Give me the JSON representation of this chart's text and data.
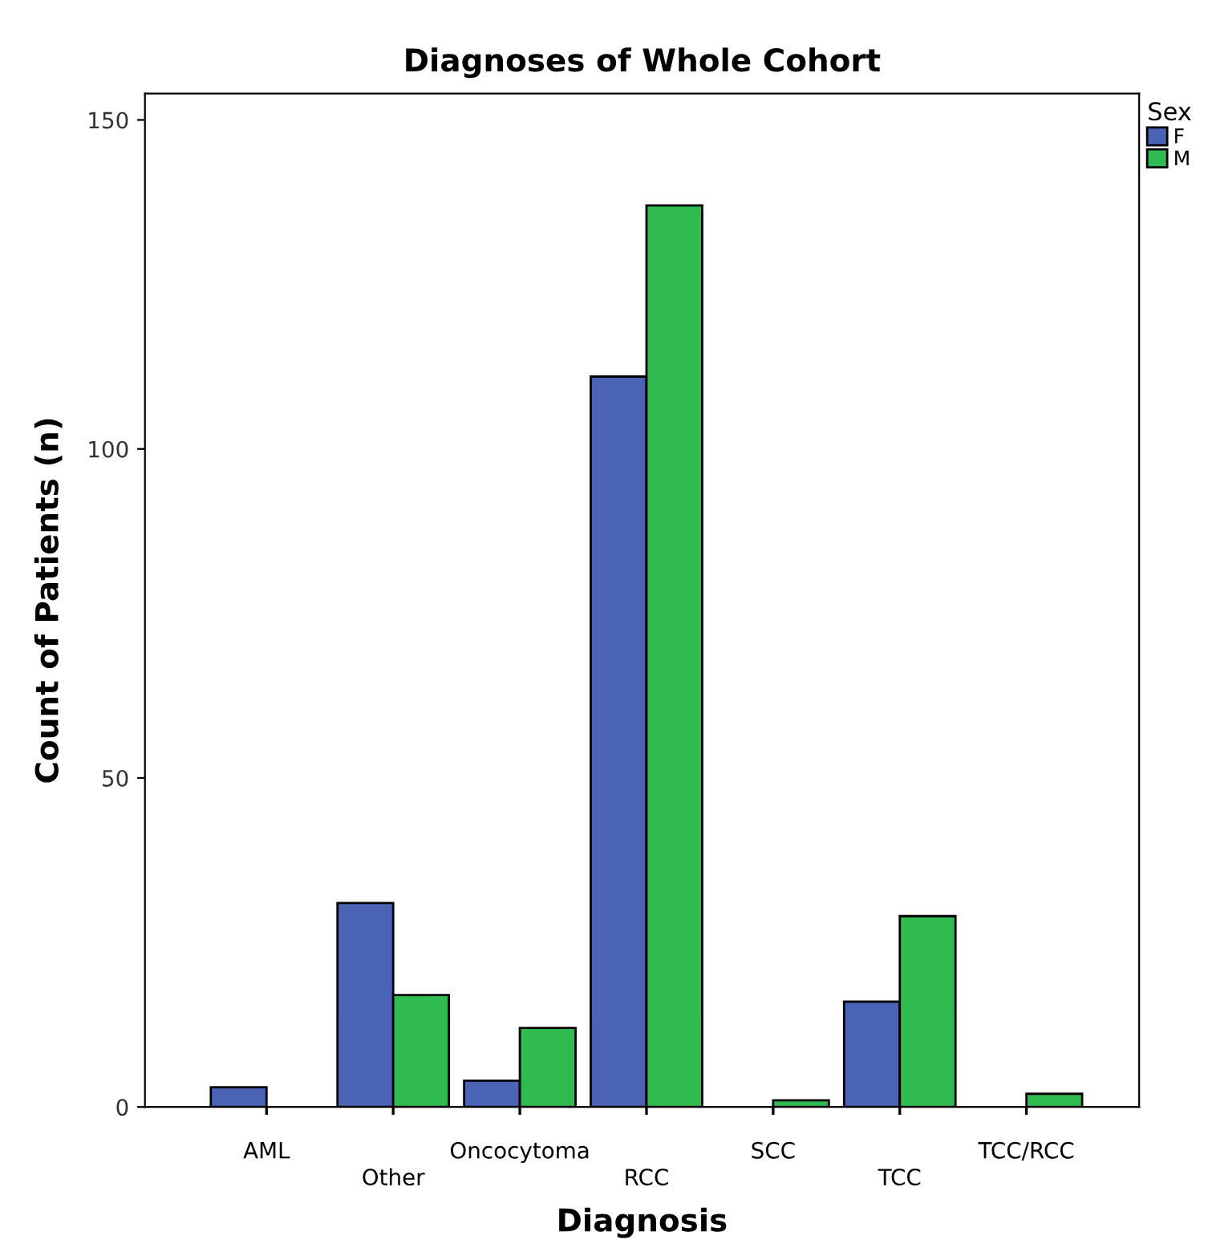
{
  "chart_data": {
    "type": "bar",
    "title": "Diagnoses of Whole Cohort",
    "xlabel": "Diagnosis",
    "ylabel": "Count of Patients (n)",
    "legend_title": "Sex",
    "categories": [
      "AML",
      "Other",
      "Oncocytoma",
      "RCC",
      "SCC",
      "TCC",
      "TCC/RCC"
    ],
    "series": [
      {
        "name": "F",
        "color": "#4a63b5",
        "values": [
          3,
          31,
          4,
          111,
          0,
          16,
          0
        ]
      },
      {
        "name": "M",
        "color": "#30bb50",
        "values": [
          0,
          17,
          12,
          137,
          1,
          29,
          2
        ]
      }
    ],
    "ylim": [
      0,
      154
    ],
    "yticks": [
      0,
      50,
      100,
      150
    ],
    "grid": false,
    "legend": "top right"
  }
}
